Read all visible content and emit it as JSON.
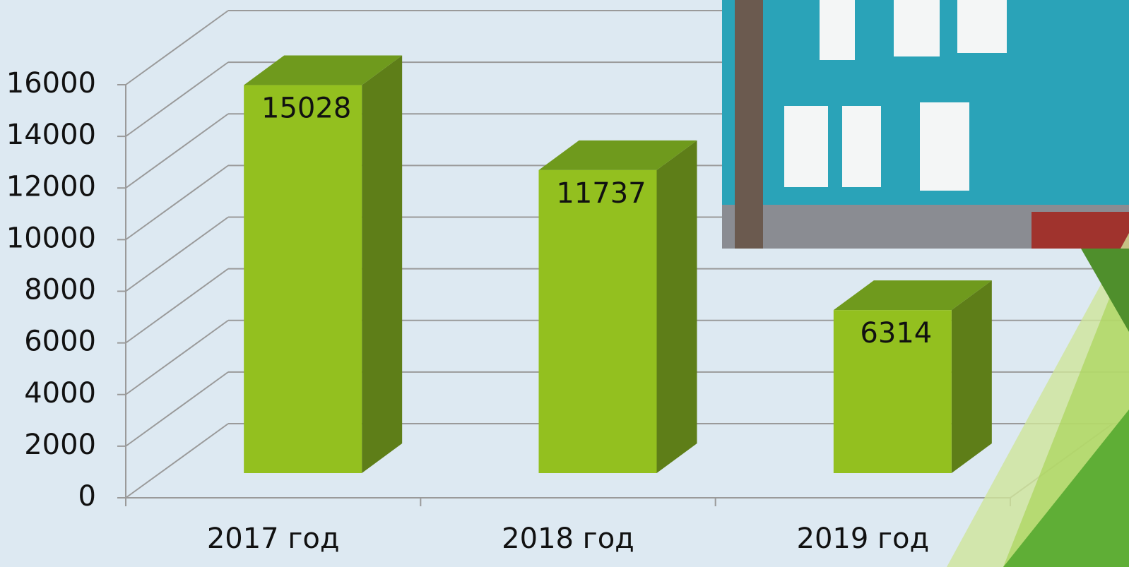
{
  "chart_data": {
    "type": "bar3d",
    "categories": [
      "2017 год",
      "2018 год",
      "2019 год"
    ],
    "values": [
      15028,
      11737,
      6314
    ],
    "color": "#93c01f",
    "ylim": [
      0,
      16000
    ],
    "yticks": [
      0,
      2000,
      4000,
      6000,
      8000,
      10000,
      12000,
      14000,
      16000
    ],
    "grid": true
  }
}
